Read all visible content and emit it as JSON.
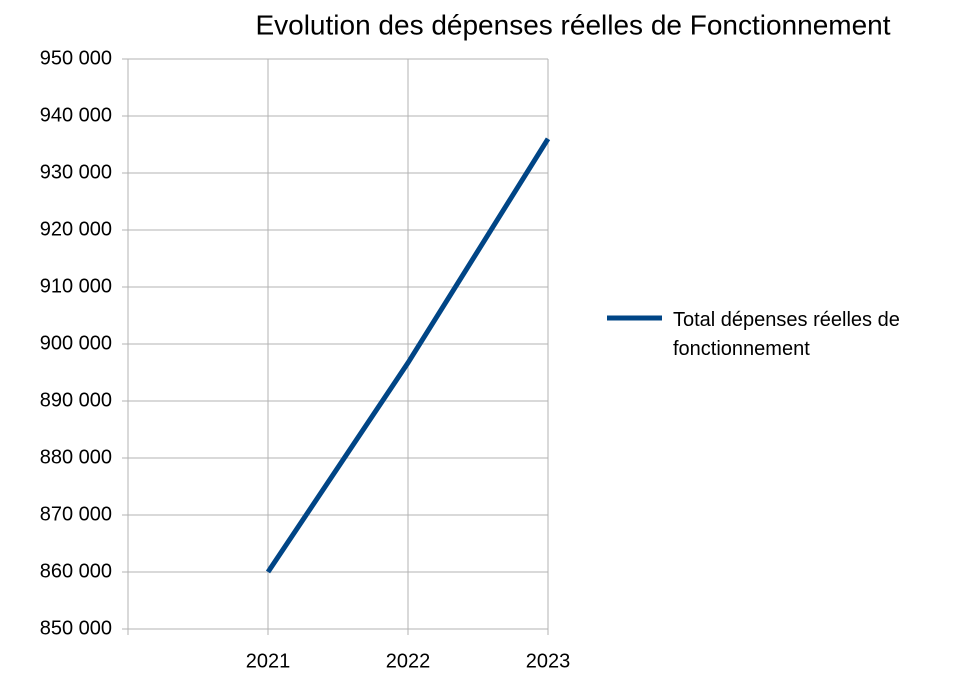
{
  "chart_data": {
    "type": "line",
    "title": "Evolution des dépenses réelles de Fonctionnement",
    "categories": [
      "2021",
      "2022",
      "2023"
    ],
    "series": [
      {
        "name": "Total dépenses réelles de fonctionnement",
        "color": "#004586",
        "values": [
          860000,
          896700,
          936000
        ]
      }
    ],
    "ylim": [
      850000,
      950000
    ],
    "yticks": [
      {
        "value": 850000,
        "label": "850 000"
      },
      {
        "value": 860000,
        "label": "860 000"
      },
      {
        "value": 870000,
        "label": "870 000"
      },
      {
        "value": 880000,
        "label": "880 000"
      },
      {
        "value": 890000,
        "label": "890 000"
      },
      {
        "value": 900000,
        "label": "900 000"
      },
      {
        "value": 910000,
        "label": "910 000"
      },
      {
        "value": 920000,
        "label": "920 000"
      },
      {
        "value": 930000,
        "label": "930 000"
      },
      {
        "value": 940000,
        "label": "940 000"
      },
      {
        "value": 950000,
        "label": "950 000"
      }
    ],
    "grid": true,
    "legend": "right"
  }
}
